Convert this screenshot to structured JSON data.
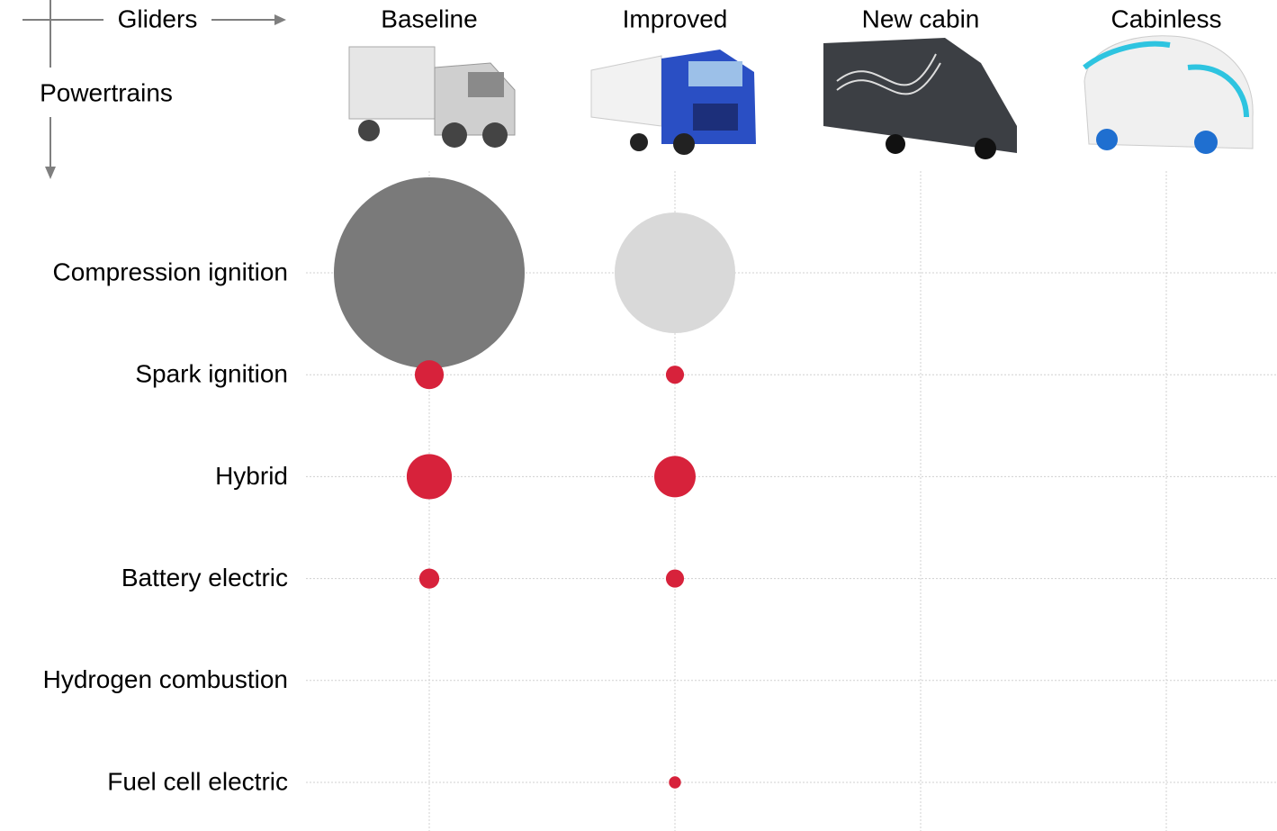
{
  "chart_data": {
    "type": "bubble-matrix",
    "x_label": "Gliders",
    "y_label": "Powertrains",
    "categories": [
      "Baseline",
      "Improved",
      "New cabin",
      "Cabinless"
    ],
    "rows": [
      "Compression ignition",
      "Spark ignition",
      "Hybrid",
      "Battery electric",
      "Hydrogen combustion",
      "Fuel cell electric"
    ],
    "series": [
      {
        "name": "Compression ignition",
        "color": "#7a7a7a",
        "colors": [
          "#7a7a7a",
          "#d9d9d9",
          "#7a7a7a",
          "#7a7a7a"
        ],
        "values": [
          100,
          40,
          null,
          null
        ]
      },
      {
        "name": "Spark ignition",
        "color": "#d7223b",
        "values": [
          2.3,
          0.9,
          null,
          null
        ]
      },
      {
        "name": "Hybrid",
        "color": "#d7223b",
        "values": [
          5.6,
          4.7,
          null,
          null
        ]
      },
      {
        "name": "Battery electric",
        "color": "#d7223b",
        "values": [
          1.1,
          0.9,
          null,
          null
        ]
      },
      {
        "name": "Hydrogen combustion",
        "color": "#d7223b",
        "values": [
          null,
          null,
          null,
          null
        ]
      },
      {
        "name": "Fuel cell electric",
        "color": "#d7223b",
        "values": [
          null,
          0.4,
          null,
          null
        ]
      }
    ],
    "grid": true
  }
}
